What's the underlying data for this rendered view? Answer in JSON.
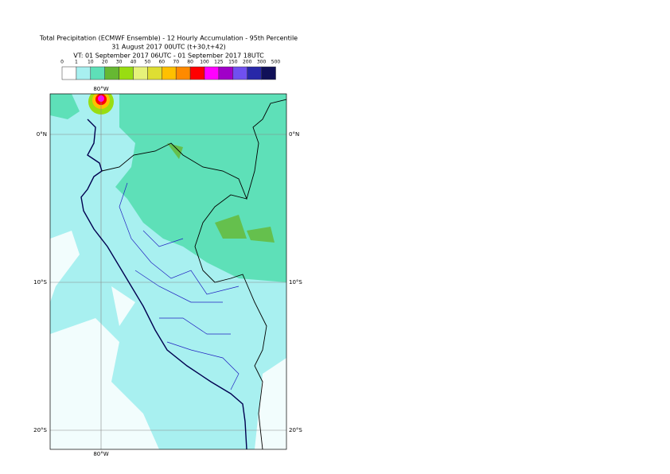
{
  "header": {
    "title_lines": [
      "Total Precipitation (ECMWF Ensemble) - 12 Hourly Accumulation - 95th Percentile",
      "31 August 2017 00UTC (t+30,t+42)",
      "VT: 01 September 2017 06UTC - 01 September 2017 18UTC"
    ]
  },
  "legend": {
    "labels": [
      "0",
      "1",
      "10",
      "20",
      "30",
      "40",
      "50",
      "60",
      "70",
      "80",
      "100",
      "125",
      "150",
      "200",
      "300",
      "500"
    ],
    "colors": [
      "#ffffff",
      "#a8f0f0",
      "#5ee0b8",
      "#66b832",
      "#99dd11",
      "#e6f27a",
      "#dede33",
      "#ffc000",
      "#ff8a00",
      "#ff0000",
      "#ff00ff",
      "#a000c8",
      "#7050f0",
      "#2828a8",
      "#101058"
    ]
  },
  "map": {
    "lon_label": "80°W",
    "lat_labels": [
      "0°N",
      "10°S",
      "20°S"
    ]
  }
}
